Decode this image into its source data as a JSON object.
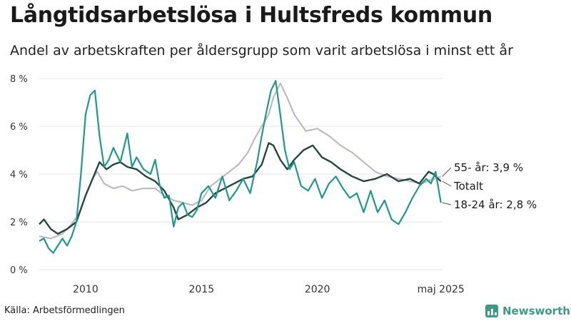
{
  "title": "Långtidsarbetslösa i Hultsfreds kommun",
  "subtitle": "Andel av arbetskraften per åldersgrupp som varit arbetslösa i minst ett år",
  "source": "Källa: Arbetsförmedlingen",
  "brand": "Newsworthy",
  "chart_data": {
    "type": "line",
    "ylim": [
      0,
      8
    ],
    "xlim": [
      2008.0,
      2025.4
    ],
    "y_ticks": [
      0,
      2,
      4,
      6,
      8
    ],
    "y_tick_labels": [
      "0 %",
      "2 %",
      "4 %",
      "6 %",
      "8 %"
    ],
    "x_ticks": [
      2010,
      2015,
      2020,
      2025.33
    ],
    "x_tick_labels": [
      "2010",
      "2015",
      "2020",
      "maj 2025"
    ],
    "grid": true,
    "series": [
      {
        "name": "55- år",
        "label": "55- år: 3,9 %",
        "color": "#bdbac6",
        "x": [
          2008.0,
          2008.5,
          2009.0,
          2009.3,
          2009.7,
          2010.0,
          2010.3,
          2010.5,
          2010.8,
          2011.2,
          2011.6,
          2012.0,
          2012.5,
          2013.0,
          2013.4,
          2013.8,
          2014.2,
          2014.6,
          2015.0,
          2015.4,
          2015.8,
          2016.2,
          2016.6,
          2017.0,
          2017.3,
          2017.6,
          2017.9,
          2018.1,
          2018.4,
          2018.7,
          2019.0,
          2019.5,
          2020.0,
          2020.5,
          2021.0,
          2021.5,
          2022.0,
          2022.5,
          2023.0,
          2023.5,
          2024.0,
          2024.5,
          2025.0,
          2025.33
        ],
        "values": [
          1.4,
          1.3,
          1.5,
          1.8,
          2.3,
          3.1,
          3.8,
          4.1,
          3.6,
          3.4,
          3.5,
          3.3,
          3.4,
          3.4,
          3.1,
          2.9,
          2.8,
          2.7,
          2.9,
          3.5,
          3.8,
          4.1,
          4.4,
          4.9,
          5.5,
          6.0,
          6.5,
          7.2,
          7.8,
          7.2,
          6.5,
          5.8,
          5.9,
          5.6,
          5.2,
          4.9,
          4.5,
          4.1,
          3.9,
          3.8,
          3.7,
          3.6,
          3.8,
          3.9
        ]
      },
      {
        "name": "Totalt",
        "label": "Totalt",
        "color": "#26473e",
        "x": [
          2008.0,
          2008.2,
          2008.5,
          2008.8,
          2009.2,
          2009.6,
          2010.0,
          2010.3,
          2010.6,
          2010.9,
          2011.2,
          2011.5,
          2011.8,
          2012.2,
          2012.6,
          2013.0,
          2013.4,
          2013.8,
          2014.0,
          2014.4,
          2014.8,
          2015.2,
          2015.6,
          2016.0,
          2016.4,
          2016.8,
          2017.2,
          2017.6,
          2017.9,
          2018.1,
          2018.4,
          2018.7,
          2019.0,
          2019.4,
          2019.8,
          2020.2,
          2020.6,
          2021.0,
          2021.5,
          2022.0,
          2022.5,
          2023.0,
          2023.5,
          2024.0,
          2024.4,
          2024.8,
          2025.0,
          2025.33
        ],
        "values": [
          1.9,
          2.1,
          1.7,
          1.5,
          1.7,
          2.0,
          3.1,
          3.8,
          4.5,
          4.2,
          4.4,
          4.5,
          4.3,
          4.2,
          3.9,
          3.7,
          3.3,
          2.6,
          2.1,
          2.3,
          2.6,
          2.8,
          3.2,
          3.4,
          3.6,
          3.8,
          3.9,
          4.4,
          5.3,
          5.2,
          4.6,
          4.2,
          4.6,
          5.0,
          5.2,
          4.7,
          4.5,
          4.2,
          3.9,
          3.7,
          3.8,
          4.0,
          3.7,
          3.8,
          3.6,
          4.1,
          4.0,
          3.7
        ]
      },
      {
        "name": "18-24 år",
        "label": "18-24 år: 2,8 %",
        "color": "#1d9a88",
        "x": [
          2008.0,
          2008.2,
          2008.4,
          2008.6,
          2008.8,
          2009.0,
          2009.2,
          2009.4,
          2009.6,
          2009.8,
          2010.0,
          2010.2,
          2010.4,
          2010.6,
          2010.8,
          2011.0,
          2011.2,
          2011.5,
          2011.8,
          2012.0,
          2012.2,
          2012.5,
          2012.8,
          2013.0,
          2013.2,
          2013.4,
          2013.6,
          2013.8,
          2014.0,
          2014.2,
          2014.4,
          2014.6,
          2014.8,
          2015.0,
          2015.3,
          2015.6,
          2015.9,
          2016.2,
          2016.5,
          2016.8,
          2017.1,
          2017.4,
          2017.6,
          2017.8,
          2018.0,
          2018.2,
          2018.4,
          2018.6,
          2018.8,
          2019.0,
          2019.3,
          2019.6,
          2019.9,
          2020.2,
          2020.5,
          2020.8,
          2021.1,
          2021.4,
          2021.7,
          2022.0,
          2022.3,
          2022.6,
          2022.9,
          2023.2,
          2023.5,
          2023.8,
          2024.1,
          2024.4,
          2024.7,
          2024.9,
          2025.1,
          2025.33
        ],
        "values": [
          1.2,
          1.3,
          0.9,
          0.7,
          1.0,
          1.3,
          1.0,
          1.4,
          2.0,
          4.0,
          6.5,
          7.3,
          7.5,
          5.6,
          4.3,
          4.6,
          5.1,
          4.5,
          5.7,
          4.3,
          4.7,
          4.2,
          4.0,
          4.6,
          3.5,
          3.0,
          3.1,
          1.8,
          2.6,
          2.8,
          2.3,
          2.2,
          2.5,
          3.2,
          3.5,
          3.0,
          3.9,
          2.9,
          3.3,
          3.8,
          3.2,
          4.5,
          5.6,
          6.6,
          7.5,
          7.9,
          6.5,
          5.0,
          4.2,
          4.5,
          3.5,
          3.3,
          3.8,
          3.0,
          3.6,
          3.9,
          3.4,
          3.0,
          3.2,
          2.4,
          3.3,
          2.4,
          2.9,
          2.1,
          1.9,
          2.4,
          3.0,
          3.5,
          3.8,
          3.6,
          4.1,
          2.8
        ]
      }
    ]
  }
}
